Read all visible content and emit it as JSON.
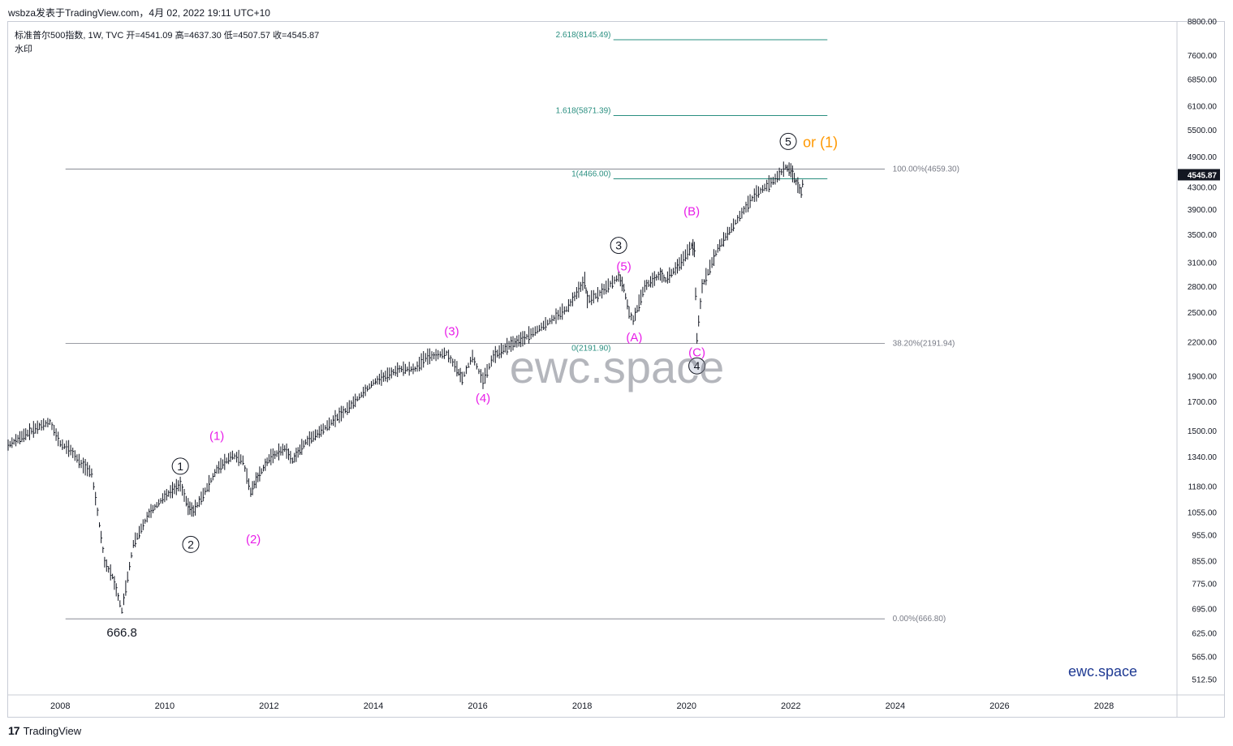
{
  "header": {
    "text": "wsbza发表于TradingView.com，4月 02, 2022 19:11 UTC+10"
  },
  "legend": {
    "line1": "标准普尔500指数, 1W, TVC  开=4541.09  高=4637.30  低=4507.57  收=4545.87",
    "line2": "水印"
  },
  "footer": {
    "logo": "17",
    "text": "TradingView"
  },
  "watermark": {
    "big": "ewc.space",
    "small": "ewc.space"
  },
  "colors": {
    "price": "#131722",
    "magenta": "#e81ee8",
    "orange": "#ff9800",
    "teal": "#2a8f80",
    "gray": "#787b86"
  },
  "chart_data": {
    "type": "line",
    "title": "标准普尔500指数",
    "interval": "1W",
    "source": "TVC",
    "y_scale": "log",
    "ylim": [
      480,
      8800
    ],
    "xlim": [
      2007.0,
      2029.4
    ],
    "last_price": "4545.87",
    "y_ticks": [
      "8800.00",
      "7600.00",
      "6850.00",
      "6100.00",
      "5500.00",
      "4900.00",
      "4300.00",
      "3900.00",
      "3500.00",
      "3100.00",
      "2800.00",
      "2500.00",
      "2200.00",
      "1900.00",
      "1700.00",
      "1500.00",
      "1340.00",
      "1180.00",
      "1055.00",
      "955.00",
      "855.00",
      "775.00",
      "695.00",
      "625.00",
      "565.00",
      "512.50"
    ],
    "x_ticks": [
      "2008",
      "2010",
      "2012",
      "2014",
      "2016",
      "2018",
      "2020",
      "2022",
      "2024",
      "2026",
      "2028"
    ],
    "series": [
      {
        "x": [
          2007.0,
          2007.3,
          2007.6,
          2007.8,
          2008.0,
          2008.2,
          2008.4,
          2008.6,
          2008.75,
          2008.85,
          2009.0,
          2009.18,
          2009.4,
          2009.7,
          2010.0,
          2010.3,
          2010.45,
          2010.55,
          2010.7,
          2011.0,
          2011.3,
          2011.5,
          2011.65,
          2011.75,
          2012.0,
          2012.3,
          2012.45,
          2012.7,
          2013.0,
          2013.5,
          2014.0,
          2014.5,
          2014.8,
          2015.0,
          2015.4,
          2015.6,
          2015.7,
          2015.9,
          2016.1,
          2016.3,
          2016.6,
          2016.9,
          2017.3,
          2017.7,
          2018.05,
          2018.1,
          2018.3,
          2018.7,
          2018.8,
          2018.9,
          2018.98,
          2019.2,
          2019.5,
          2019.6,
          2019.9,
          2020.1,
          2020.15,
          2020.2,
          2020.3,
          2020.6,
          2020.9,
          2021.3,
          2021.7,
          2021.9,
          2022.0,
          2022.1,
          2022.2,
          2022.25
        ],
        "values": [
          1410,
          1470,
          1530,
          1560,
          1420,
          1380,
          1300,
          1250,
          1000,
          850,
          800,
          690,
          920,
          1050,
          1130,
          1190,
          1080,
          1060,
          1120,
          1270,
          1350,
          1320,
          1150,
          1210,
          1330,
          1390,
          1320,
          1430,
          1500,
          1650,
          1850,
          1960,
          1960,
          2060,
          2100,
          1960,
          1880,
          2070,
          1860,
          2070,
          2170,
          2240,
          2380,
          2540,
          2870,
          2640,
          2700,
          2920,
          2780,
          2500,
          2420,
          2800,
          2950,
          2880,
          3110,
          3340,
          3280,
          2237,
          2800,
          3300,
          3650,
          4150,
          4450,
          4690,
          4620,
          4400,
          4200,
          4545.87
        ]
      }
    ],
    "fib_extension": [
      {
        "label": "2.618(8145.49)",
        "value": 8145.49
      },
      {
        "label": "1.618(5871.39)",
        "value": 5871.39
      },
      {
        "label": "1(4466.00)",
        "value": 4466.0
      },
      {
        "label": "0(2191.90)",
        "value": 2191.9
      }
    ],
    "fib_retracement": [
      {
        "label": "100.00%(4659.30)",
        "value": 4659.3
      },
      {
        "label": "38.20%(2191.94)",
        "value": 2191.94
      },
      {
        "label": "0.00%(666.80)",
        "value": 666.8
      }
    ],
    "annotations": {
      "low": {
        "label": "666.8",
        "x": 2009.18,
        "value": 666.8
      },
      "circled": [
        {
          "label": "1",
          "x": 2010.3,
          "value": 1290
        },
        {
          "label": "2",
          "x": 2010.5,
          "value": 920
        },
        {
          "label": "3",
          "x": 2018.7,
          "value": 3350
        },
        {
          "label": "4",
          "x": 2020.2,
          "value": 1990
        },
        {
          "label": "5",
          "x": 2021.95,
          "value": 5250
        }
      ],
      "or_label": "or (1)",
      "minor": [
        {
          "label": "(1)",
          "x": 2011.0,
          "value": 1470
        },
        {
          "label": "(2)",
          "x": 2011.7,
          "value": 940
        },
        {
          "label": "(3)",
          "x": 2015.5,
          "value": 2310
        },
        {
          "label": "(4)",
          "x": 2016.1,
          "value": 1730
        },
        {
          "label": "(5)",
          "x": 2018.8,
          "value": 3060
        },
        {
          "label": "(A)",
          "x": 2019.0,
          "value": 2250
        },
        {
          "label": "(B)",
          "x": 2020.1,
          "value": 3880
        },
        {
          "label": "(C)",
          "x": 2020.2,
          "value": 2110
        }
      ]
    }
  }
}
